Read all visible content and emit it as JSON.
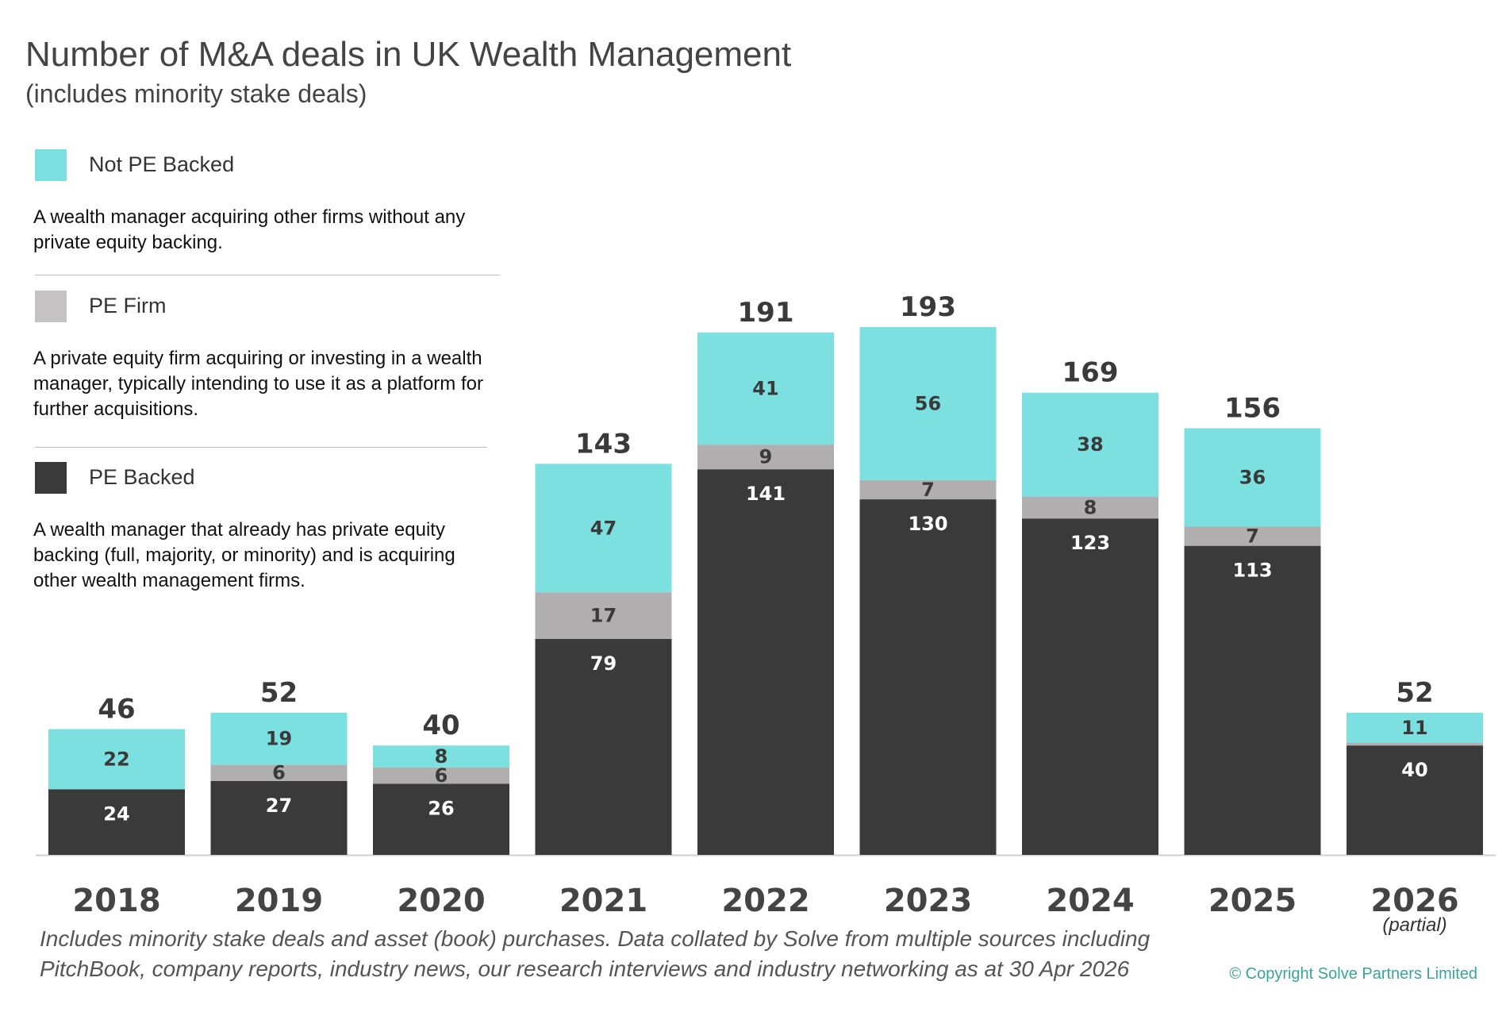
{
  "header": {
    "title": "Number of M&A deals in UK Wealth Management",
    "subtitle": "(includes minority stake deals)"
  },
  "legend": [
    {
      "label": "Not PE Backed",
      "color": "#7de0e0",
      "description": "A wealth manager acquiring other firms without any private equity backing."
    },
    {
      "label": "PE Firm",
      "color": "#b0aeae",
      "description": "A private equity firm acquiring or investing in a wealth manager, typically intending to use it as a platform for further acquisitions."
    },
    {
      "label": "PE Backed",
      "color": "#3b3a3a",
      "description": "A wealth manager that already has private equity backing (full, majority, or minority) and is acquiring other wealth management firms."
    }
  ],
  "chart_data": {
    "type": "bar",
    "stacked": true,
    "categories": [
      "2018",
      "2019",
      "2020",
      "2021",
      "2022",
      "2023",
      "2024",
      "2025",
      "2026"
    ],
    "category_note": {
      "2026": "(partial)"
    },
    "series": [
      {
        "name": "PE Backed",
        "color": "#3b3a3a",
        "values": [
          24,
          27,
          26,
          79,
          141,
          130,
          123,
          113,
          40
        ]
      },
      {
        "name": "PE Firm",
        "color": "#b0aeae",
        "values": [
          0,
          6,
          6,
          17,
          9,
          7,
          8,
          7,
          1
        ]
      },
      {
        "name": "Not PE Backed",
        "color": "#7de0e0",
        "values": [
          22,
          19,
          8,
          47,
          41,
          56,
          38,
          36,
          11
        ]
      }
    ],
    "segment_labels": {
      "PE Backed": [
        "24",
        "27",
        "26",
        "79",
        "141",
        "130",
        "123",
        "113",
        "40"
      ],
      "PE Firm": [
        "",
        "6",
        "6",
        "17",
        "9",
        "7",
        "8",
        "7",
        ""
      ],
      "Not PE Backed": [
        "22",
        "19",
        "8",
        "47",
        "41",
        "56",
        "38",
        "36",
        "11"
      ]
    },
    "totals": [
      "46",
      "52",
      "40",
      "143",
      "191",
      "193",
      "169",
      "156",
      "52"
    ],
    "ylim": [
      0,
      200
    ],
    "grid": false,
    "legend_position": "left"
  },
  "footnote": "Includes minority stake deals and asset (book) purchases. Data collated by Solve from multiple sources including PitchBook, company reports, industry news, our research interviews and industry networking as at 30 Apr 2026",
  "copyright": "© Copyright Solve Partners Limited"
}
